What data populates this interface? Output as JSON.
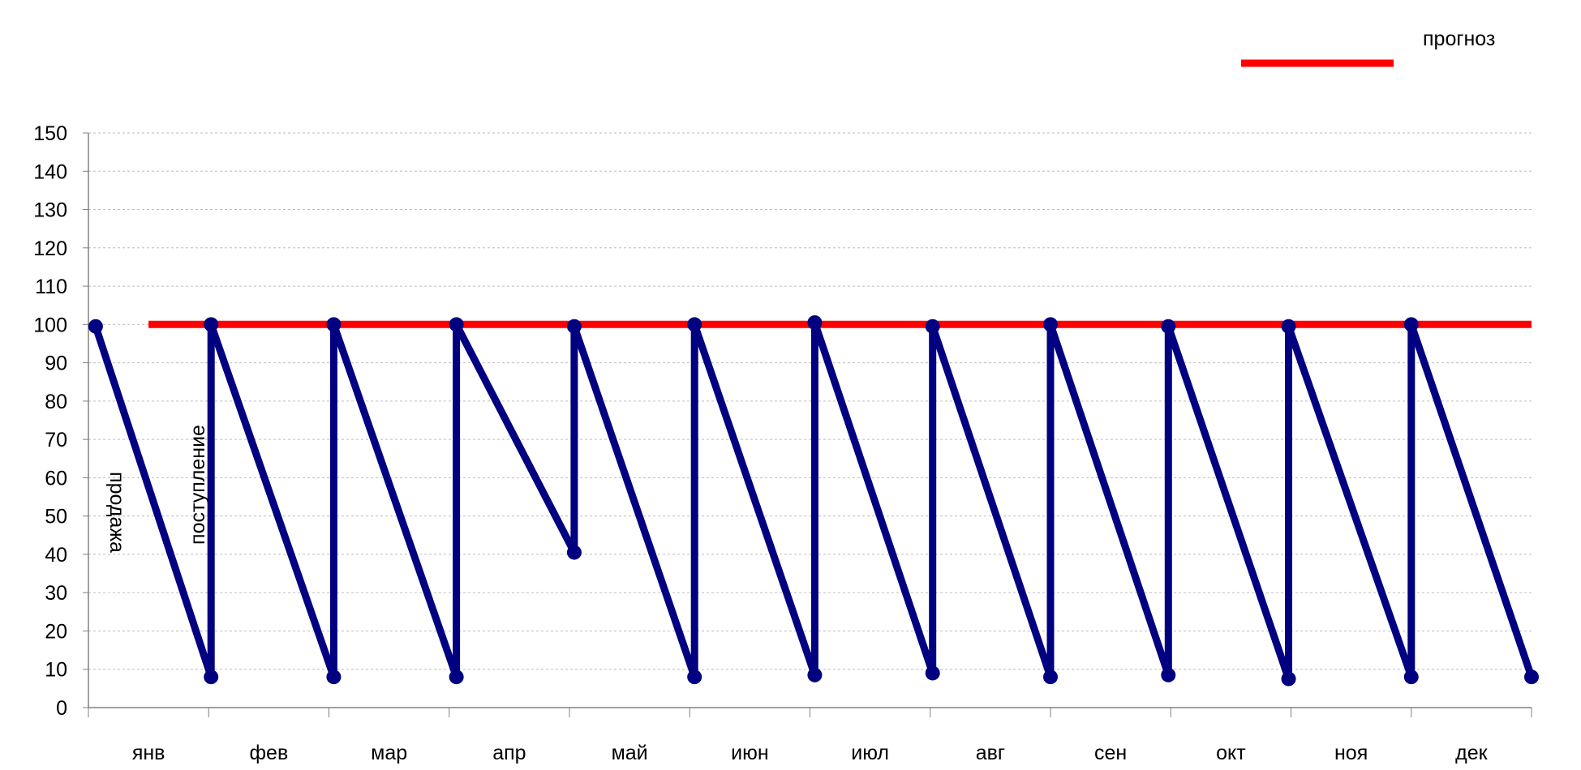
{
  "chart_data": {
    "type": "line",
    "categories": [
      "янв",
      "фев",
      "мар",
      "апр",
      "май",
      "июн",
      "июл",
      "авг",
      "сен",
      "окт",
      "ноя",
      "дек"
    ],
    "ylim": [
      0,
      150
    ],
    "yticks": [
      0,
      10,
      20,
      30,
      40,
      50,
      60,
      70,
      80,
      90,
      100,
      110,
      120,
      130,
      140,
      150
    ],
    "grid": true,
    "legend_position": "top-right",
    "legend": [
      {
        "name": "прогноз",
        "color": "#ff0000"
      }
    ],
    "annotations": [
      "продажа",
      "поступление"
    ],
    "series": [
      {
        "name": "прогноз",
        "color": "#ff0000",
        "x": [
          0.5,
          12.0
        ],
        "y": [
          100,
          100
        ]
      },
      {
        "color": "#000080",
        "x": [
          0.06,
          1.02,
          1.02,
          2.04,
          2.04,
          3.06,
          3.06,
          4.04,
          4.04,
          5.04,
          5.04,
          6.04,
          6.04,
          7.02,
          7.02,
          8.0,
          8.0,
          8.98,
          8.98,
          9.98,
          9.98,
          11.0,
          11.0,
          12.0
        ],
        "y": [
          99.5,
          8,
          100,
          8,
          100,
          8,
          100,
          40.5,
          99.5,
          8,
          100,
          8.5,
          100.5,
          9,
          99.5,
          8,
          100,
          8.5,
          99.5,
          7.5,
          99.5,
          8,
          100,
          8
        ]
      }
    ]
  }
}
